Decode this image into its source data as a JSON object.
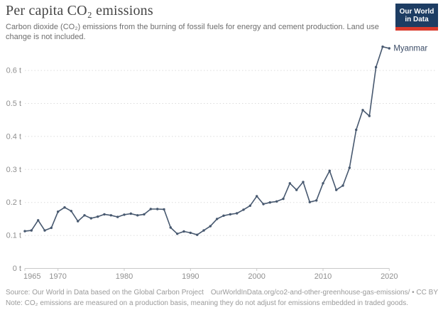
{
  "header": {
    "title": "Per capita CO₂ emissions",
    "subtitle": "Carbon dioxide (CO₂) emissions from the burning of fossil fuels for energy and cement production. Land use change is not included.",
    "logo": {
      "line1": "Our World",
      "line2": "in Data"
    }
  },
  "colors": {
    "line": "#47586f",
    "series_label": "#3a4b66",
    "grid": "#dcdcdc",
    "axis": "#c9c9c9",
    "tick_text": "#8f8f8f",
    "logo_navy": "#1d3d63",
    "logo_red": "#d93a2b"
  },
  "chart_data": {
    "type": "line",
    "title": "Per capita CO₂ emissions",
    "xlabel": "",
    "ylabel": "",
    "xlim": [
      1965,
      2020
    ],
    "ylim": [
      0,
      0.69
    ],
    "grid": "dotted-horizontal",
    "legend_position": "end-of-line-label",
    "x": [
      1965,
      1966,
      1967,
      1968,
      1969,
      1970,
      1971,
      1972,
      1973,
      1974,
      1975,
      1976,
      1977,
      1978,
      1979,
      1980,
      1981,
      1982,
      1983,
      1984,
      1985,
      1986,
      1987,
      1988,
      1989,
      1990,
      1991,
      1992,
      1993,
      1994,
      1995,
      1996,
      1997,
      1998,
      1999,
      2000,
      2001,
      2002,
      2003,
      2004,
      2005,
      2006,
      2007,
      2008,
      2009,
      2010,
      2011,
      2012,
      2013,
      2014,
      2015,
      2016,
      2017,
      2018,
      2019,
      2020
    ],
    "series": [
      {
        "name": "Myanmar",
        "values": [
          0.113,
          0.115,
          0.146,
          0.115,
          0.123,
          0.172,
          0.185,
          0.174,
          0.143,
          0.161,
          0.152,
          0.157,
          0.164,
          0.161,
          0.156,
          0.163,
          0.166,
          0.161,
          0.164,
          0.18,
          0.18,
          0.179,
          0.124,
          0.105,
          0.112,
          0.108,
          0.102,
          0.115,
          0.128,
          0.15,
          0.16,
          0.164,
          0.167,
          0.178,
          0.19,
          0.219,
          0.195,
          0.2,
          0.203,
          0.211,
          0.258,
          0.238,
          0.262,
          0.201,
          0.206,
          0.258,
          0.296,
          0.238,
          0.251,
          0.305,
          0.42,
          0.48,
          0.462,
          0.61,
          0.672,
          0.667
        ]
      }
    ],
    "yticks": [
      {
        "label": "0 t",
        "value": 0.0
      },
      {
        "label": "0.1 t",
        "value": 0.1
      },
      {
        "label": "0.2 t",
        "value": 0.2
      },
      {
        "label": "0.3 t",
        "value": 0.3
      },
      {
        "label": "0.4 t",
        "value": 0.4
      },
      {
        "label": "0.5 t",
        "value": 0.5
      },
      {
        "label": "0.6 t",
        "value": 0.6
      }
    ],
    "xticks": [
      {
        "label": "1965",
        "value": 1965
      },
      {
        "label": "1970",
        "value": 1970
      },
      {
        "label": "1980",
        "value": 1980
      },
      {
        "label": "1990",
        "value": 1990
      },
      {
        "label": "2000",
        "value": 2000
      },
      {
        "label": "2010",
        "value": 2010
      },
      {
        "label": "2020",
        "value": 2020
      }
    ]
  },
  "footer": {
    "source": "Source: Our World in Data based on the Global Carbon Project",
    "url": "OurWorldInData.org/co2-and-other-greenhouse-gas-emissions/ • CC BY",
    "note": "Note: CO₂ emissions are measured on a production basis, meaning they do not adjust for emissions embedded in traded goods."
  }
}
